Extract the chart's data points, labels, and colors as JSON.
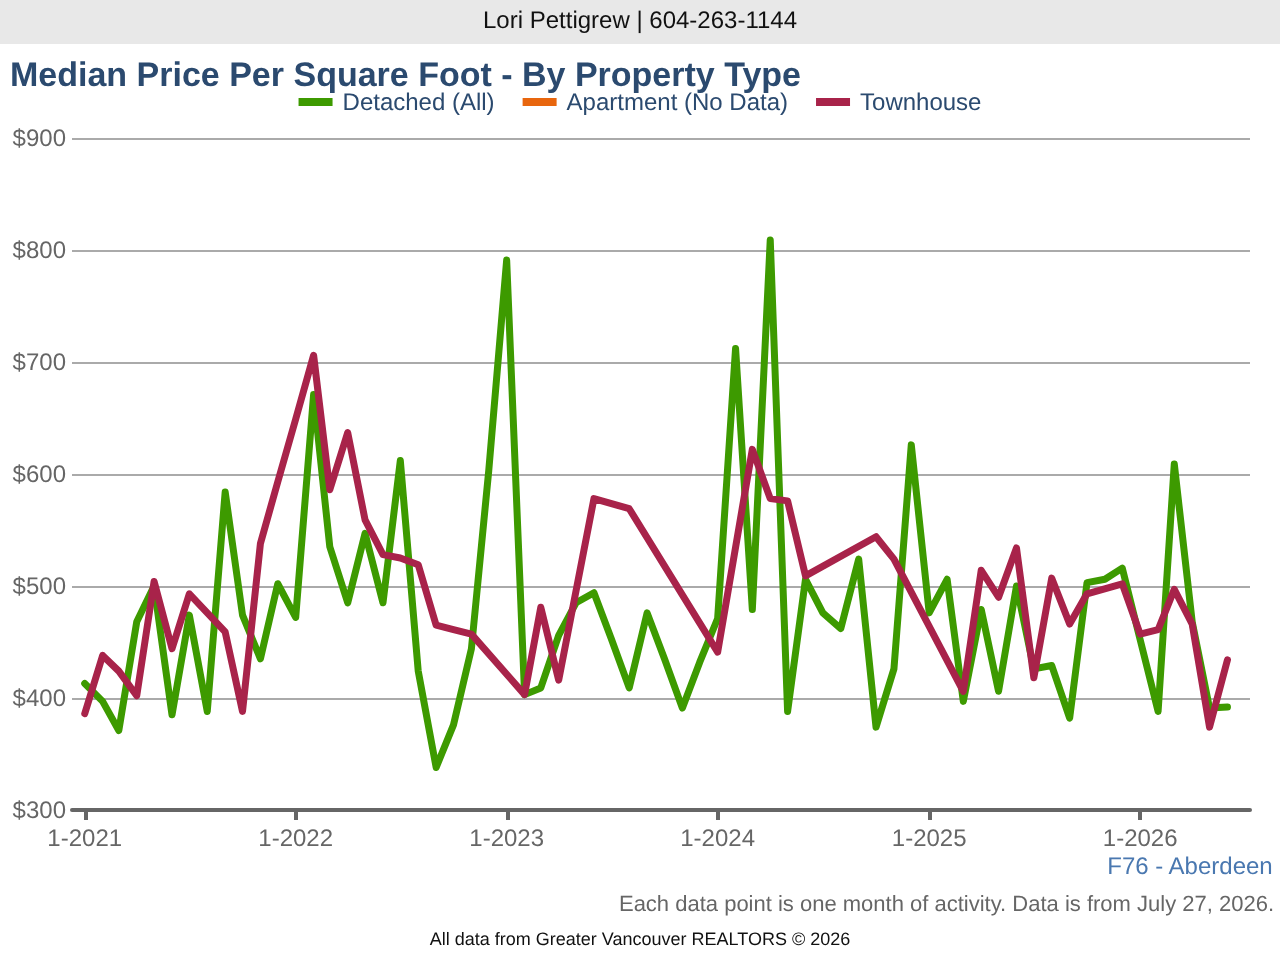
{
  "chart_data": {
    "type": "line",
    "title": "Median Price Per Square Foot - By Property Type",
    "annotations": [
      "Lori Pettigrew | 604-263-1144",
      "F76 - Aberdeen",
      "Each data point is one month of activity. Data is from July 27, 2026.",
      "All data from Greater Vancouver REALTORS © 2026"
    ],
    "x": [
      "2021-01",
      "2021-02",
      "2021-03",
      "2021-04",
      "2021-05",
      "2021-06",
      "2021-07",
      "2021-08",
      "2021-09",
      "2021-10",
      "2021-11",
      "2021-12",
      "2022-01",
      "2022-02",
      "2022-03",
      "2022-04",
      "2022-05",
      "2022-06",
      "2022-07",
      "2022-08",
      "2022-09",
      "2022-10",
      "2022-11",
      "2022-12",
      "2023-01",
      "2023-02",
      "2023-03",
      "2023-04",
      "2023-05",
      "2023-06",
      "2023-07",
      "2023-08",
      "2023-09",
      "2023-10",
      "2023-11",
      "2023-12",
      "2024-01",
      "2024-02",
      "2024-03",
      "2024-04",
      "2024-05",
      "2024-06",
      "2024-07",
      "2024-08",
      "2024-09",
      "2024-10",
      "2024-11",
      "2024-12",
      "2025-01",
      "2025-02",
      "2025-03",
      "2025-04",
      "2025-05",
      "2025-06",
      "2025-07",
      "2025-08",
      "2025-09",
      "2025-10",
      "2025-11",
      "2025-12",
      "2026-01",
      "2026-02",
      "2026-03",
      "2026-04",
      "2026-05",
      "2026-06"
    ],
    "series": [
      {
        "name": "Detached (All)",
        "color": "#3d9a00",
        "values": [
          413,
          397,
          371,
          468,
          500,
          385,
          474,
          388,
          584,
          474,
          435,
          502,
          472,
          671,
          535,
          485,
          547,
          485,
          612,
          424,
          338,
          376,
          444,
          603,
          791,
          403,
          409,
          456,
          485,
          494,
          453,
          409,
          476,
          435,
          391,
          432,
          471,
          712,
          479,
          809,
          388,
          506,
          476,
          462,
          524,
          374,
          426,
          626,
          476,
          506,
          397,
          479,
          406,
          500,
          426,
          429,
          382,
          503,
          506,
          516,
          452,
          388,
          609,
          468,
          391,
          392
        ]
      },
      {
        "name": "Apartment (No Data)",
        "color": "#e8660e",
        "values": [
          null,
          null,
          null,
          null,
          null,
          null,
          null,
          null,
          null,
          null,
          null,
          null,
          null,
          null,
          null,
          null,
          null,
          null,
          null,
          null,
          null,
          null,
          null,
          null,
          null,
          null,
          null,
          null,
          null,
          null,
          null,
          null,
          null,
          null,
          null,
          null,
          null,
          null,
          null,
          null,
          null,
          null,
          null,
          null,
          null,
          null,
          null,
          null,
          null,
          null,
          null,
          null,
          null,
          null,
          null,
          null,
          null,
          null,
          null,
          null,
          null,
          null,
          null,
          null,
          null,
          null
        ]
      },
      {
        "name": "Townhouse",
        "color": "#a8234a",
        "x": [
          "2021-01",
          "2021-02",
          "2021-03",
          "2021-04",
          "2021-05",
          "2021-06",
          "2021-07",
          "2021-08",
          "2021-09",
          "2021-10",
          "2021-11",
          "2021-12",
          "2022-01",
          "2022-02",
          "2022-03",
          "2022-04",
          "2022-05",
          "2022-06",
          "2022-07",
          "2022-08",
          "2022-09",
          "2022-10",
          "2022-11",
          "2023-02",
          "2023-03",
          "2023-04",
          "2023-06",
          "2023-08",
          "2024-01",
          "2024-03",
          "2024-04",
          "2024-05",
          "2024-06",
          "2024-10",
          "2024-11",
          "2025-03",
          "2025-04",
          "2025-05",
          "2025-06",
          "2025-07",
          "2025-08",
          "2025-09",
          "2025-10",
          "2025-12",
          "2026-01",
          "2026-02",
          "2026-03",
          "2026-04",
          "2026-05",
          "2026-06"
        ],
        "values": [
          386,
          438,
          424,
          402,
          504,
          444,
          493,
          476,
          459,
          388,
          538,
          593,
          649,
          706,
          586,
          637,
          559,
          528,
          525,
          519,
          465,
          461,
          457,
          403,
          481,
          416,
          578,
          569,
          441,
          622,
          578,
          576,
          509,
          544,
          524,
          406,
          514,
          490,
          534,
          418,
          507,
          466,
          493,
          502,
          457,
          461,
          497,
          466,
          374,
          434
        ]
      }
    ],
    "xlim": [
      "2020-12-10",
      "2026-07-10"
    ],
    "xticks": [
      {
        "value": "2021-01",
        "label": "1-2021"
      },
      {
        "value": "2022-01",
        "label": "1-2022"
      },
      {
        "value": "2023-01",
        "label": "1-2023"
      },
      {
        "value": "2024-01",
        "label": "1-2024"
      },
      {
        "value": "2025-01",
        "label": "1-2025"
      },
      {
        "value": "2026-01",
        "label": "1-2026"
      }
    ],
    "ylim": [
      300,
      900
    ],
    "yticks": [
      {
        "value": 300,
        "label": "$300"
      },
      {
        "value": 400,
        "label": "$400"
      },
      {
        "value": 500,
        "label": "$500"
      },
      {
        "value": 600,
        "label": "$600"
      },
      {
        "value": 700,
        "label": "$700"
      },
      {
        "value": 800,
        "label": "$800"
      },
      {
        "value": 900,
        "label": "$900"
      }
    ],
    "grid": "y",
    "legend": "top",
    "marker": "none",
    "line_style": "solid"
  }
}
